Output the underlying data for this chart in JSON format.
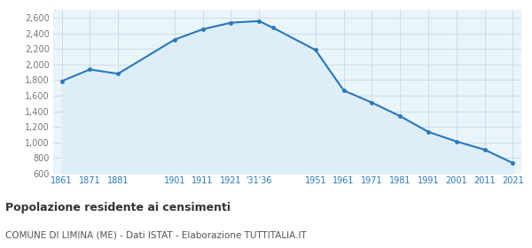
{
  "years": [
    1861,
    1871,
    1881,
    1901,
    1911,
    1921,
    1931,
    1936,
    1951,
    1961,
    1971,
    1981,
    1991,
    2001,
    2011,
    2021
  ],
  "population": [
    1786,
    1936,
    1881,
    2318,
    2452,
    2536,
    2557,
    2470,
    2186,
    1667,
    1511,
    1337,
    1136,
    1012,
    907,
    735
  ],
  "ylim": [
    600,
    2700
  ],
  "yticks": [
    600,
    800,
    1000,
    1200,
    1400,
    1600,
    1800,
    2000,
    2200,
    2400,
    2600
  ],
  "line_color": "#2878be",
  "fill_color": "#ddeef8",
  "marker_color": "#2878be",
  "bg_color": "#eaf4fb",
  "grid_color": "#c5d9e8",
  "title": "Popolazione residente ai censimenti",
  "subtitle": "COMUNE DI LIMINA (ME) - Dati ISTAT - Elaborazione TUTTITALIA.IT",
  "title_color": "#333333",
  "subtitle_color": "#555555",
  "tick_label_color": "#2878be",
  "ytick_label_color": "#777777"
}
